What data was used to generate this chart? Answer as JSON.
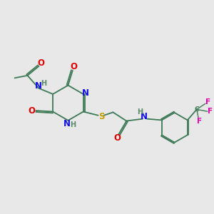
{
  "bg_color": "#e8e8e8",
  "bond_color": "#3d7a55",
  "atom_colors": {
    "N": "#1010e0",
    "O": "#dd0000",
    "S": "#c8a000",
    "H": "#5a8a6a",
    "F": "#e000b0",
    "C": "#3d7a55"
  },
  "lw": 1.3,
  "fs": 8.5
}
